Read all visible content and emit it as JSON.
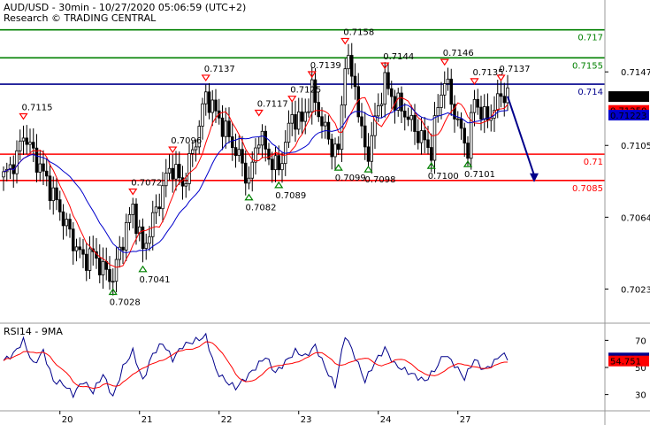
{
  "header": {
    "title": "AUD/USD - 30min - 10/27/2020 05:06:59 (UTC+2)",
    "source": "Research © TRADING CENTRAL"
  },
  "chart_data": {
    "type": "candlestick",
    "price_axis": {
      "ticks": [
        0.7147,
        0.7105,
        0.7064,
        0.7023
      ],
      "ylim": [
        0.7004,
        0.7184
      ]
    },
    "rsi_axis": {
      "title": "RSI14 - 9MA",
      "ticks": [
        70,
        50,
        30
      ],
      "ylim": [
        18,
        82
      ]
    },
    "x_labels": [
      {
        "label": "20",
        "t": 17
      },
      {
        "label": "21",
        "t": 41
      },
      {
        "label": "22",
        "t": 65
      },
      {
        "label": "23",
        "t": 89
      },
      {
        "label": "24",
        "t": 113
      },
      {
        "label": "27",
        "t": 137
      }
    ],
    "levels": [
      {
        "label": "0.717",
        "price": 0.7171,
        "color": "#008000"
      },
      {
        "label": "0.7155",
        "price": 0.7155,
        "color": "#008000"
      },
      {
        "label": "0.714",
        "price": 0.714,
        "color": "#00008b"
      },
      {
        "label": "0.71",
        "price": 0.71,
        "color": "#ff0000"
      },
      {
        "label": "0.7085",
        "price": 0.7085,
        "color": "#ff0000"
      }
    ],
    "current": [
      {
        "label": "0.71329",
        "price": 0.71329,
        "bg": "#000000",
        "fg": "#ffffff"
      },
      {
        "label": "0.71250",
        "price": 0.7125,
        "bg": "#ff0000",
        "fg": "#ffffff"
      },
      {
        "label": "0.71223",
        "price": 0.71223,
        "bg": "#0000cc",
        "fg": "#ffffff"
      }
    ],
    "rsi_current": [
      {
        "label": "56.986",
        "value": 56.986,
        "bg": "#00008b",
        "fg": "#ffffff"
      },
      {
        "label": "54.751",
        "value": 54.751,
        "bg": "#ff0000",
        "fg": "#ffffff"
      }
    ],
    "highs": [
      {
        "label": "0.7115",
        "t": 6,
        "price": 0.7115
      },
      {
        "label": "0.7072",
        "t": 39,
        "price": 0.7072
      },
      {
        "label": "0.7096",
        "t": 51,
        "price": 0.7096
      },
      {
        "label": "0.7137",
        "t": 61,
        "price": 0.7137
      },
      {
        "label": "0.7117",
        "t": 77,
        "price": 0.7117
      },
      {
        "label": "0.7125",
        "t": 87,
        "price": 0.7125
      },
      {
        "label": "0.7139",
        "t": 93,
        "price": 0.7139
      },
      {
        "label": "0.7158",
        "t": 103,
        "price": 0.7158
      },
      {
        "label": "0.7144",
        "t": 115,
        "price": 0.7144
      },
      {
        "label": "0.7146",
        "t": 133,
        "price": 0.7146
      },
      {
        "label": "0.7135",
        "t": 142,
        "price": 0.7135
      },
      {
        "label": "0.7137",
        "t": 150,
        "price": 0.7137
      }
    ],
    "lows": [
      {
        "label": "0.7028",
        "t": 33,
        "price": 0.7028
      },
      {
        "label": "0.7041",
        "t": 42,
        "price": 0.7041
      },
      {
        "label": "0.7082",
        "t": 74,
        "price": 0.7082
      },
      {
        "label": "0.7089",
        "t": 83,
        "price": 0.7089
      },
      {
        "label": "0.7099",
        "t": 101,
        "price": 0.7099
      },
      {
        "label": "0.7098",
        "t": 110,
        "price": 0.7098
      },
      {
        "label": "0.7100",
        "t": 129,
        "price": 0.71
      },
      {
        "label": "0.7101",
        "t": 140,
        "price": 0.7101
      }
    ],
    "price_path": [
      {
        "t": 0,
        "p": 0.7087
      },
      {
        "t": 4,
        "p": 0.7098
      },
      {
        "t": 6,
        "p": 0.7112
      },
      {
        "t": 9,
        "p": 0.71
      },
      {
        "t": 13,
        "p": 0.7085
      },
      {
        "t": 17,
        "p": 0.7068
      },
      {
        "t": 21,
        "p": 0.705
      },
      {
        "t": 24,
        "p": 0.704
      },
      {
        "t": 27,
        "p": 0.7043
      },
      {
        "t": 30,
        "p": 0.7034
      },
      {
        "t": 33,
        "p": 0.7029
      },
      {
        "t": 36,
        "p": 0.7052
      },
      {
        "t": 39,
        "p": 0.707
      },
      {
        "t": 42,
        "p": 0.7045
      },
      {
        "t": 46,
        "p": 0.7068
      },
      {
        "t": 49,
        "p": 0.7087
      },
      {
        "t": 51,
        "p": 0.7093
      },
      {
        "t": 54,
        "p": 0.7082
      },
      {
        "t": 58,
        "p": 0.7108
      },
      {
        "t": 61,
        "p": 0.7134
      },
      {
        "t": 65,
        "p": 0.712
      },
      {
        "t": 69,
        "p": 0.7106
      },
      {
        "t": 72,
        "p": 0.7094
      },
      {
        "t": 74,
        "p": 0.7084
      },
      {
        "t": 77,
        "p": 0.7112
      },
      {
        "t": 80,
        "p": 0.7098
      },
      {
        "t": 83,
        "p": 0.7091
      },
      {
        "t": 87,
        "p": 0.7122
      },
      {
        "t": 90,
        "p": 0.7118
      },
      {
        "t": 93,
        "p": 0.7136
      },
      {
        "t": 96,
        "p": 0.7118
      },
      {
        "t": 99,
        "p": 0.7104
      },
      {
        "t": 101,
        "p": 0.7101
      },
      {
        "t": 103,
        "p": 0.7155
      },
      {
        "t": 106,
        "p": 0.714
      },
      {
        "t": 108,
        "p": 0.711
      },
      {
        "t": 110,
        "p": 0.71
      },
      {
        "t": 113,
        "p": 0.7128
      },
      {
        "t": 115,
        "p": 0.7141
      },
      {
        "t": 118,
        "p": 0.713
      },
      {
        "t": 121,
        "p": 0.7124
      },
      {
        "t": 124,
        "p": 0.7114
      },
      {
        "t": 127,
        "p": 0.7107
      },
      {
        "t": 129,
        "p": 0.7102
      },
      {
        "t": 131,
        "p": 0.7128
      },
      {
        "t": 133,
        "p": 0.7143
      },
      {
        "t": 136,
        "p": 0.7124
      },
      {
        "t": 138,
        "p": 0.7112
      },
      {
        "t": 140,
        "p": 0.7103
      },
      {
        "t": 142,
        "p": 0.7132
      },
      {
        "t": 145,
        "p": 0.712
      },
      {
        "t": 148,
        "p": 0.7125
      },
      {
        "t": 150,
        "p": 0.7135
      },
      {
        "t": 152,
        "p": 0.7133
      }
    ],
    "forecast": {
      "from": {
        "t": 152,
        "p": 0.7133
      },
      "to": {
        "t": 160,
        "p": 0.7085
      },
      "color": "#00008b"
    },
    "rsi_path": [
      {
        "t": 0,
        "v": 55
      },
      {
        "t": 3,
        "v": 60
      },
      {
        "t": 6,
        "v": 70
      },
      {
        "t": 9,
        "v": 52
      },
      {
        "t": 12,
        "v": 62
      },
      {
        "t": 15,
        "v": 40
      },
      {
        "t": 18,
        "v": 38
      },
      {
        "t": 21,
        "v": 30
      },
      {
        "t": 24,
        "v": 40
      },
      {
        "t": 27,
        "v": 32
      },
      {
        "t": 30,
        "v": 45
      },
      {
        "t": 33,
        "v": 28
      },
      {
        "t": 36,
        "v": 50
      },
      {
        "t": 39,
        "v": 62
      },
      {
        "t": 42,
        "v": 40
      },
      {
        "t": 45,
        "v": 60
      },
      {
        "t": 48,
        "v": 68
      },
      {
        "t": 51,
        "v": 56
      },
      {
        "t": 54,
        "v": 66
      },
      {
        "t": 58,
        "v": 70
      },
      {
        "t": 61,
        "v": 73
      },
      {
        "t": 64,
        "v": 48
      },
      {
        "t": 67,
        "v": 40
      },
      {
        "t": 70,
        "v": 35
      },
      {
        "t": 73,
        "v": 42
      },
      {
        "t": 76,
        "v": 50
      },
      {
        "t": 79,
        "v": 58
      },
      {
        "t": 82,
        "v": 46
      },
      {
        "t": 85,
        "v": 54
      },
      {
        "t": 88,
        "v": 62
      },
      {
        "t": 91,
        "v": 58
      },
      {
        "t": 94,
        "v": 66
      },
      {
        "t": 97,
        "v": 50
      },
      {
        "t": 100,
        "v": 36
      },
      {
        "t": 103,
        "v": 74
      },
      {
        "t": 106,
        "v": 58
      },
      {
        "t": 109,
        "v": 40
      },
      {
        "t": 112,
        "v": 54
      },
      {
        "t": 115,
        "v": 64
      },
      {
        "t": 118,
        "v": 52
      },
      {
        "t": 121,
        "v": 48
      },
      {
        "t": 124,
        "v": 44
      },
      {
        "t": 127,
        "v": 40
      },
      {
        "t": 130,
        "v": 48
      },
      {
        "t": 133,
        "v": 60
      },
      {
        "t": 136,
        "v": 52
      },
      {
        "t": 139,
        "v": 42
      },
      {
        "t": 142,
        "v": 56
      },
      {
        "t": 145,
        "v": 48
      },
      {
        "t": 148,
        "v": 54
      },
      {
        "t": 150,
        "v": 60
      },
      {
        "t": 152,
        "v": 57
      }
    ]
  }
}
